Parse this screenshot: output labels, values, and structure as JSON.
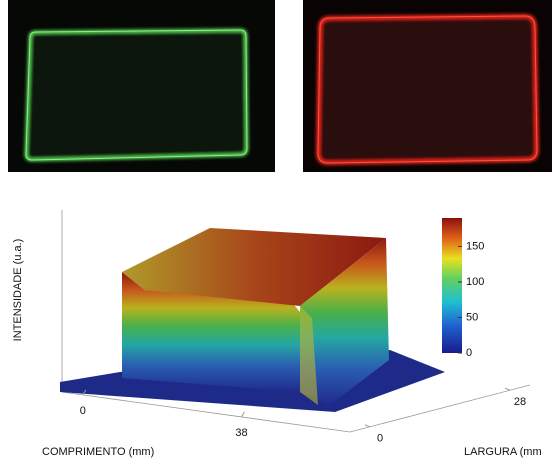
{
  "plot": {
    "y_label": "INTENSIDADE (u.a.)",
    "x_label": "COMPRIMENTO (mm)",
    "z_label": "LARGURA (mm",
    "length_axis": {
      "lim": [
        -5,
        64
      ],
      "ticks": [
        0,
        38
      ]
    },
    "width_axis": {
      "lim": [
        -4,
        32
      ],
      "ticks": [
        0,
        28
      ]
    },
    "colorbar": {
      "lim": [
        0,
        190
      ],
      "ticks": [
        0,
        50,
        100,
        150
      ]
    }
  }
}
